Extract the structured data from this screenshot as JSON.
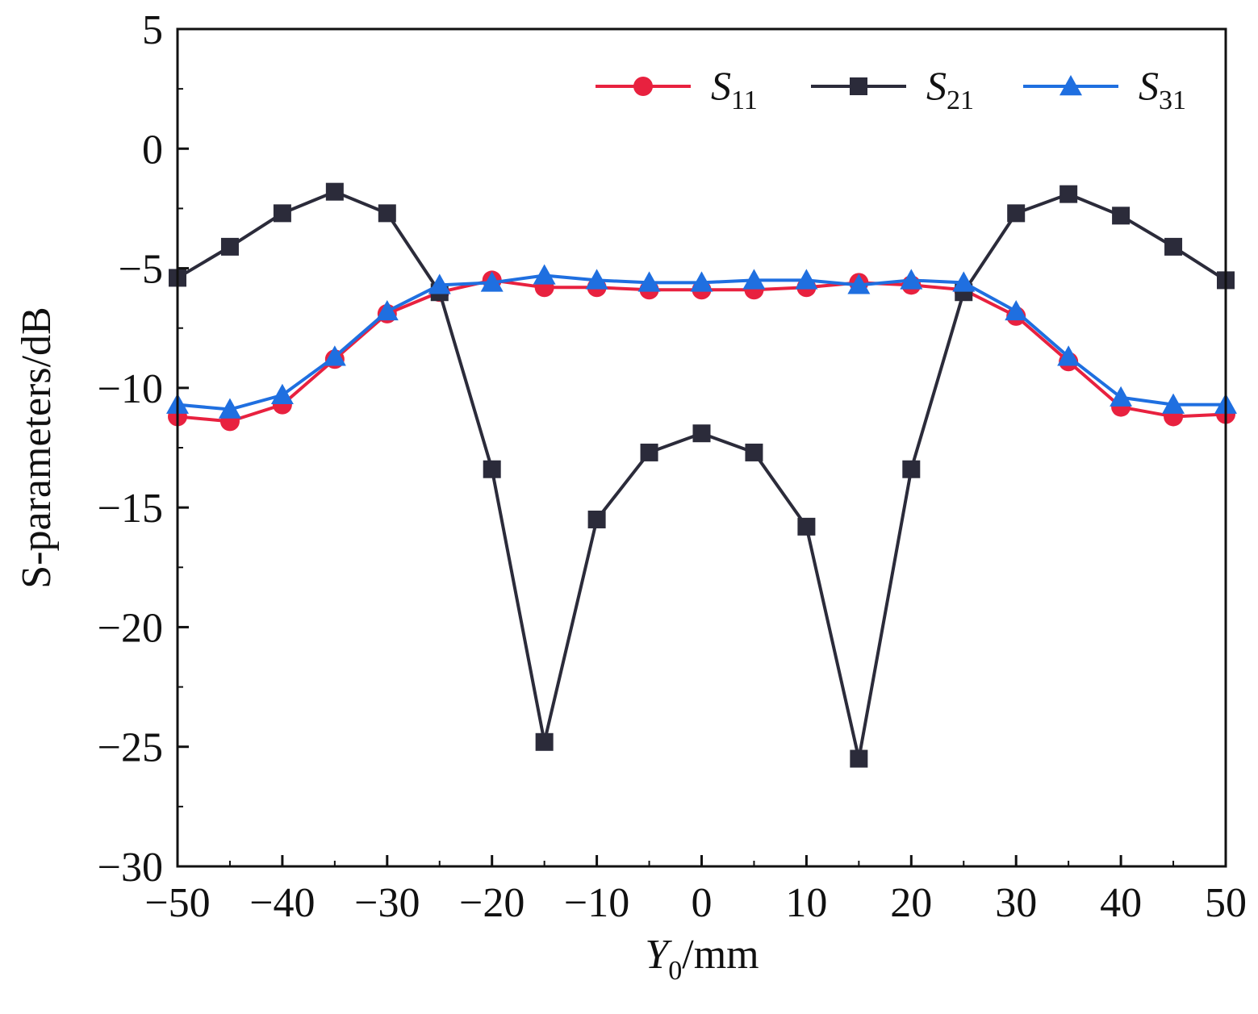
{
  "chart_data": {
    "type": "line",
    "xlabel": {
      "main": "Y",
      "sub": "0",
      "unit": "/mm"
    },
    "ylabel": "S-parameters/dB",
    "xlim": [
      -50,
      50
    ],
    "ylim": [
      -30,
      5
    ],
    "xticks": [
      -50,
      -40,
      -30,
      -20,
      -10,
      0,
      10,
      20,
      30,
      40,
      50
    ],
    "yticks": [
      5,
      0,
      -5,
      -10,
      -15,
      -20,
      -25,
      -30
    ],
    "xtick_labels": [
      "−50",
      "−40",
      "−30",
      "−20",
      "−10",
      "0",
      "10",
      "20",
      "30",
      "40",
      "50"
    ],
    "ytick_labels": [
      "5",
      "0",
      "−5",
      "−10",
      "−15",
      "−20",
      "−25",
      "−30"
    ],
    "grid": false,
    "legend_position": "top-right",
    "x": [
      -50,
      -45,
      -40,
      -35,
      -30,
      -25,
      -20,
      -15,
      -10,
      -5,
      0,
      5,
      10,
      15,
      20,
      25,
      30,
      35,
      40,
      45,
      50
    ],
    "series": [
      {
        "name": "S11",
        "label_main": "S",
        "label_sub": "11",
        "color": "#e8213f",
        "marker": "circle",
        "values": [
          -11.2,
          -11.4,
          -10.7,
          -8.8,
          -6.9,
          -6.0,
          -5.5,
          -5.8,
          -5.8,
          -5.9,
          -5.9,
          -5.9,
          -5.8,
          -5.6,
          -5.7,
          -5.9,
          -7.0,
          -8.9,
          -10.8,
          -11.2,
          -11.1
        ]
      },
      {
        "name": "S21",
        "label_main": "S",
        "label_sub": "21",
        "color": "#2b2b3a",
        "marker": "square",
        "values": [
          -5.4,
          -4.1,
          -2.7,
          -1.8,
          -2.7,
          -6.0,
          -13.4,
          -24.8,
          -15.5,
          -12.7,
          -11.9,
          -12.7,
          -15.8,
          -25.5,
          -13.4,
          -6.0,
          -2.7,
          -1.9,
          -2.8,
          -4.1,
          -5.5
        ]
      },
      {
        "name": "S31",
        "label_main": "S",
        "label_sub": "31",
        "color": "#1f6fe0",
        "marker": "triangle",
        "values": [
          -10.7,
          -10.9,
          -10.3,
          -8.7,
          -6.8,
          -5.7,
          -5.6,
          -5.3,
          -5.5,
          -5.6,
          -5.6,
          -5.5,
          -5.5,
          -5.7,
          -5.5,
          -5.6,
          -6.8,
          -8.7,
          -10.4,
          -10.7,
          -10.7
        ]
      }
    ]
  }
}
